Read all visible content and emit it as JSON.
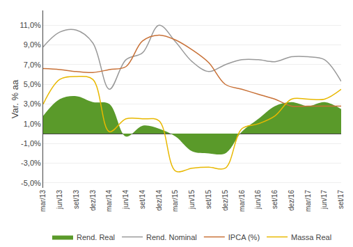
{
  "chart_data": {
    "type": "line",
    "categories": [
      "mar/13",
      "jun/13",
      "set/13",
      "dez/13",
      "mar/14",
      "jun/14",
      "set/14",
      "dez/14",
      "mar/15",
      "jun/15",
      "set/15",
      "dez/15",
      "mar/16",
      "jun/16",
      "set/16",
      "dez/16",
      "mar/17",
      "jun/17",
      "set/17"
    ],
    "series": [
      {
        "name": "Rend. Real",
        "type": "area",
        "color": "#5a9a2a",
        "values": [
          1.8,
          3.5,
          3.8,
          3.2,
          3.0,
          -0.3,
          0.8,
          0.5,
          -0.3,
          -1.8,
          -2.0,
          -2.0,
          0.2,
          1.5,
          2.8,
          3.2,
          2.8,
          3.2,
          2.5
        ]
      },
      {
        "name": "Rend. Nominal",
        "type": "line",
        "color": "#999999",
        "values": [
          8.8,
          10.3,
          10.5,
          9.2,
          4.5,
          7.5,
          8.2,
          11.0,
          9.3,
          7.3,
          6.3,
          7.0,
          7.5,
          7.5,
          7.3,
          7.8,
          7.8,
          7.5,
          5.3
        ]
      },
      {
        "name": "IPCA (%)",
        "type": "line",
        "color": "#c87137",
        "values": [
          6.6,
          6.5,
          6.3,
          6.2,
          6.5,
          6.8,
          9.4,
          10.0,
          9.5,
          8.5,
          7.2,
          5.0,
          4.5,
          4.0,
          3.5,
          2.8,
          2.8,
          2.8,
          2.8
        ]
      },
      {
        "name": "Massa Real",
        "type": "line",
        "color": "#e8b800",
        "values": [
          3.0,
          5.5,
          5.8,
          5.5,
          0.2,
          1.5,
          1.5,
          1.3,
          -3.8,
          -3.5,
          -3.4,
          -3.5,
          0.5,
          1.0,
          1.8,
          3.5,
          3.5,
          3.5,
          4.5
        ]
      }
    ],
    "ylabel": "Var. % aa",
    "ylim": [
      -5.5,
      12.5
    ],
    "yticks": [
      {
        "value": -5.0,
        "label": "-5,0%"
      },
      {
        "value": -3.0,
        "label": "-3,0%"
      },
      {
        "value": -1.0,
        "label": "-1,0%"
      },
      {
        "value": 1.0,
        "label": "1,0%"
      },
      {
        "value": 3.0,
        "label": "3,0%"
      },
      {
        "value": 5.0,
        "label": "5,0%"
      },
      {
        "value": 7.0,
        "label": "7,0%"
      },
      {
        "value": 9.0,
        "label": "9,0%"
      },
      {
        "value": 11.0,
        "label": "11,0%"
      }
    ],
    "grid": true,
    "legend": "bottom"
  }
}
